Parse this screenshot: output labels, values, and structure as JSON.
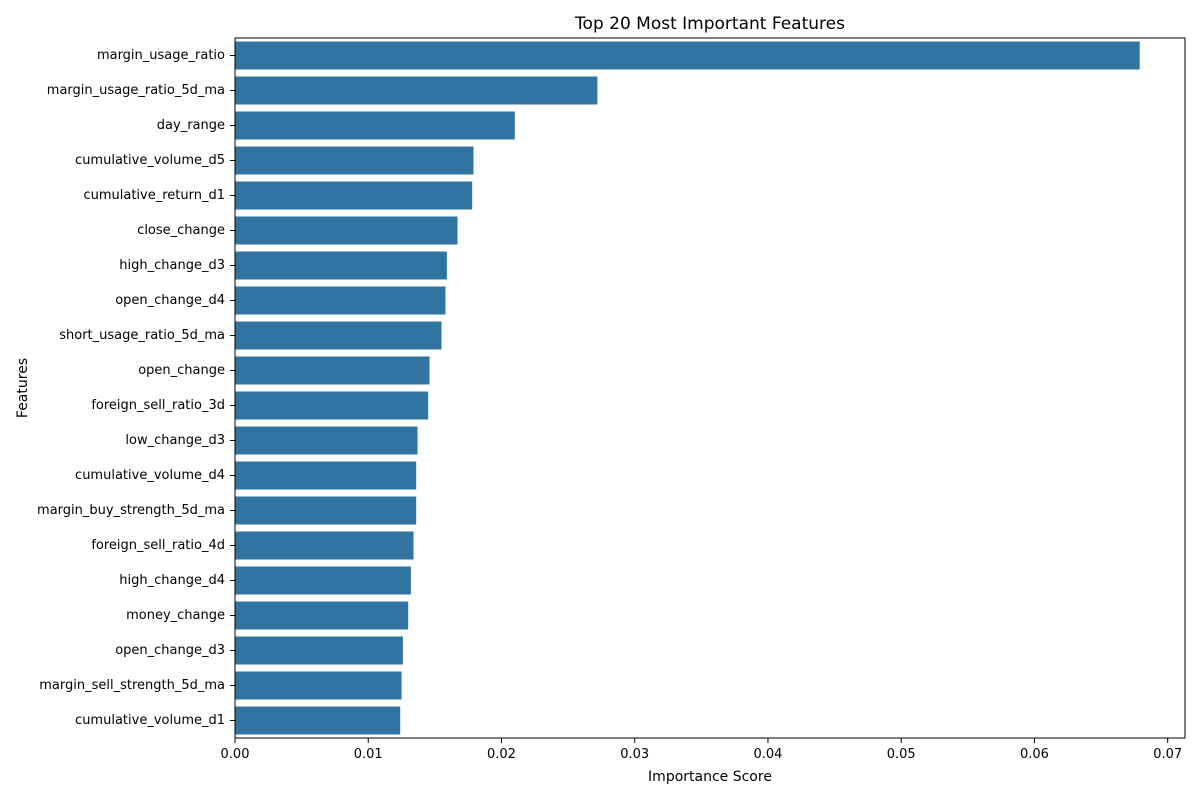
{
  "chart_data": {
    "type": "bar",
    "orientation": "horizontal",
    "title": "Top 20 Most Important Features",
    "xlabel": "Importance Score",
    "ylabel": "Features",
    "categories": [
      "margin_usage_ratio",
      "margin_usage_ratio_5d_ma",
      "day_range",
      "cumulative_volume_d5",
      "cumulative_return_d1",
      "close_change",
      "high_change_d3",
      "open_change_d4",
      "short_usage_ratio_5d_ma",
      "open_change",
      "foreign_sell_ratio_3d",
      "low_change_d3",
      "cumulative_volume_d4",
      "margin_buy_strength_5d_ma",
      "foreign_sell_ratio_4d",
      "high_change_d4",
      "money_change",
      "open_change_d3",
      "margin_sell_strength_5d_ma",
      "cumulative_volume_d1"
    ],
    "values": [
      0.0679,
      0.0272,
      0.021,
      0.0179,
      0.0178,
      0.0167,
      0.0159,
      0.0158,
      0.0155,
      0.0146,
      0.0145,
      0.0137,
      0.0136,
      0.0136,
      0.0134,
      0.0132,
      0.013,
      0.0126,
      0.0125,
      0.0124
    ],
    "xlim": [
      0,
      0.0713
    ],
    "xticks": [
      0.0,
      0.01,
      0.02,
      0.03,
      0.04,
      0.05,
      0.06,
      0.07
    ],
    "xtick_labels": [
      "0.00",
      "0.01",
      "0.02",
      "0.03",
      "0.04",
      "0.05",
      "0.06",
      "0.07"
    ],
    "bar_color": "#3274a1",
    "grid": false,
    "legend": "none"
  }
}
